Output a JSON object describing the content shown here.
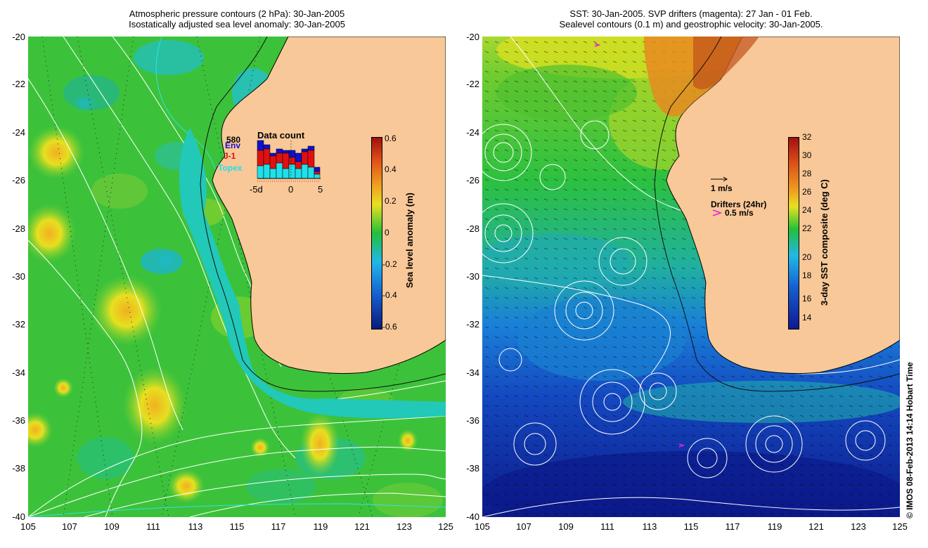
{
  "left": {
    "title_line1": "Atmospheric pressure contours (2 hPa): 30-Jan-2005",
    "title_line2": "Isostatically adjusted sea level anomaly: 30-Jan-2005",
    "colorbar": {
      "title": "Sea level anomaly (m)",
      "ticks": [
        "0.6",
        "0.4",
        "0.2",
        "0",
        "-0.2",
        "-0.4",
        "-0.6"
      ],
      "colors": [
        "#0a1a7a",
        "#1560d0",
        "#20b8e8",
        "#22c03a",
        "#d8e020",
        "#f08018",
        "#a01010"
      ]
    },
    "inset": {
      "title": "Data count",
      "max_label": "580",
      "series": [
        "Env",
        "J-1",
        "Topex"
      ],
      "series_colors": [
        "#1010d0",
        "#e01010",
        "#20e0e8"
      ],
      "x_ticks": [
        "-5d",
        "0",
        "5"
      ]
    }
  },
  "right": {
    "title_line1": "SST: 30-Jan-2005. SVP drifters (magenta): 27 Jan - 01 Feb.",
    "title_line2": "Sealevel contours (0.1 m) and geostrophic velocity: 30-Jan-2005.",
    "colorbar": {
      "title": "3-day SST composite (deg C)",
      "ticks": [
        "32",
        "30",
        "28",
        "26",
        "24",
        "22",
        "20",
        "18",
        "16",
        "14"
      ],
      "colors": [
        "#101890",
        "#1060d8",
        "#20c0e0",
        "#22c03a",
        "#e0e020",
        "#f08018",
        "#a01010"
      ]
    },
    "velocity_scale": "1 m/s",
    "drifters_label": "Drifters (24hr)",
    "drifter_speed": "0.5 m/s",
    "credit": "© IMOS 08-Feb-2013 14:14 Hobart Time"
  },
  "axes": {
    "x_ticks": [
      "105",
      "107",
      "109",
      "111",
      "113",
      "115",
      "117",
      "119",
      "121",
      "123",
      "125"
    ],
    "y_ticks": [
      "-20",
      "-22",
      "-24",
      "-26",
      "-28",
      "-30",
      "-32",
      "-34",
      "-36",
      "-38",
      "-40"
    ]
  },
  "colors": {
    "land": "#f8c898",
    "ocean_green": "#34c23c",
    "contour": "#ffffff",
    "drifter": "#e020e0"
  }
}
